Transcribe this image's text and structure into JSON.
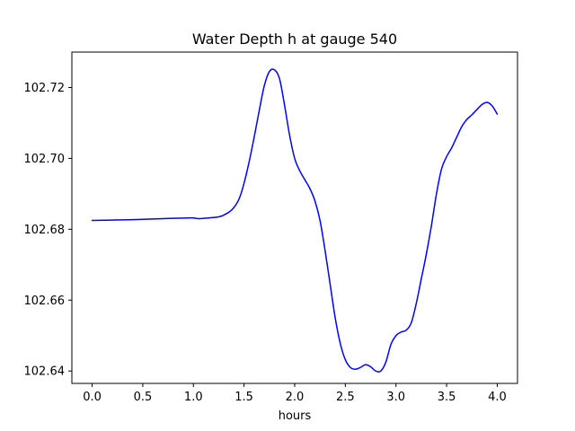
{
  "chart_data": {
    "type": "line",
    "title": "Water Depth h at gauge 540",
    "xlabel": "hours",
    "ylabel": "",
    "xlim": [
      -0.2,
      4.2
    ],
    "ylim": [
      102.6365,
      102.73
    ],
    "xticks": [
      0.0,
      0.5,
      1.0,
      1.5,
      2.0,
      2.5,
      3.0,
      3.5,
      4.0
    ],
    "xtick_labels": [
      "0.0",
      "0.5",
      "1.0",
      "1.5",
      "2.0",
      "2.5",
      "3.0",
      "3.5",
      "4.0"
    ],
    "yticks": [
      102.64,
      102.66,
      102.68,
      102.7,
      102.72
    ],
    "ytick_labels": [
      "102.64",
      "102.66",
      "102.68",
      "102.70",
      "102.72"
    ],
    "grid": false,
    "legend": "none",
    "series": [
      {
        "color": "#0000ff",
        "x": [
          0.0,
          0.2,
          0.4,
          0.6,
          0.8,
          0.95,
          1.0,
          1.05,
          1.15,
          1.25,
          1.3,
          1.38,
          1.45,
          1.5,
          1.55,
          1.6,
          1.65,
          1.7,
          1.75,
          1.8,
          1.85,
          1.9,
          1.95,
          2.0,
          2.05,
          2.1,
          2.15,
          2.2,
          2.25,
          2.3,
          2.35,
          2.4,
          2.45,
          2.5,
          2.55,
          2.6,
          2.65,
          2.7,
          2.75,
          2.8,
          2.85,
          2.9,
          2.95,
          3.0,
          3.05,
          3.1,
          3.15,
          3.2,
          3.25,
          3.3,
          3.35,
          3.4,
          3.45,
          3.5,
          3.55,
          3.6,
          3.65,
          3.7,
          3.75,
          3.8,
          3.85,
          3.9,
          3.95,
          4.0
        ],
        "y": [
          102.6825,
          102.6826,
          102.6827,
          102.6829,
          102.6831,
          102.6832,
          102.6832,
          102.683,
          102.6832,
          102.6835,
          102.684,
          102.6855,
          102.6885,
          102.693,
          102.699,
          102.706,
          102.7135,
          102.7205,
          102.7245,
          102.725,
          102.7225,
          102.715,
          102.7065,
          102.7,
          102.6965,
          102.694,
          102.6915,
          102.688,
          102.6825,
          102.674,
          102.6645,
          102.655,
          102.6478,
          102.6432,
          102.641,
          102.6405,
          102.641,
          102.6418,
          102.6412,
          102.64,
          102.64,
          102.6425,
          102.6475,
          102.65,
          102.651,
          102.6515,
          102.6535,
          102.659,
          102.666,
          102.673,
          102.681,
          102.69,
          102.697,
          102.7005,
          102.703,
          102.706,
          102.709,
          102.711,
          102.7123,
          102.7138,
          102.7152,
          102.7158,
          102.7148,
          102.7125
        ]
      }
    ]
  }
}
